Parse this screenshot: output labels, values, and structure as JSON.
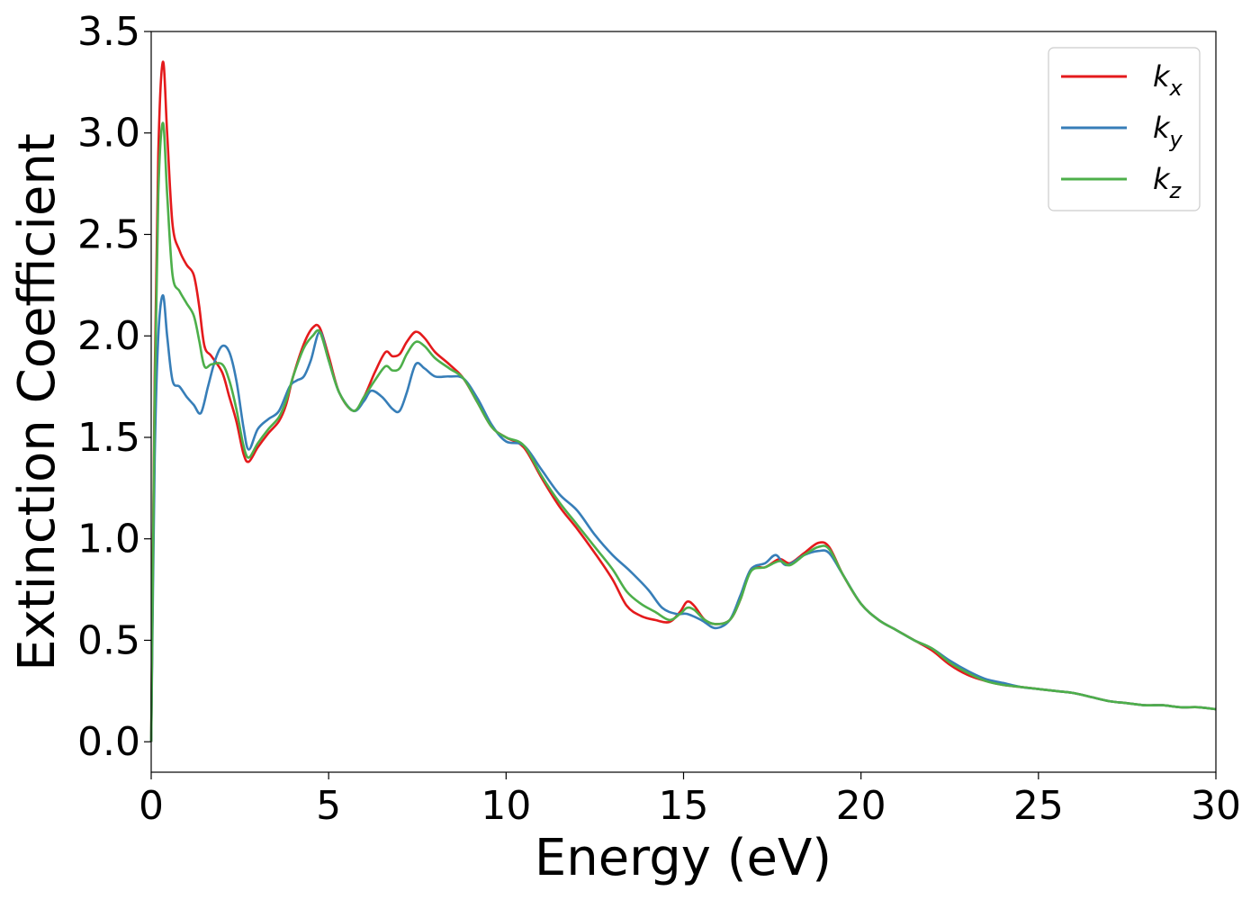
{
  "chart_data": {
    "type": "line",
    "title": "",
    "xlabel": "Energy (eV)",
    "ylabel": "Extinction Coefficient",
    "xlim": [
      0,
      30
    ],
    "ylim": [
      -0.15,
      3.5
    ],
    "xticks": [
      0,
      5,
      10,
      15,
      20,
      25,
      30
    ],
    "xtick_labels": [
      "0",
      "5",
      "10",
      "15",
      "20",
      "25",
      "30"
    ],
    "yticks": [
      0.0,
      0.5,
      1.0,
      1.5,
      2.0,
      2.5,
      3.0,
      3.5
    ],
    "ytick_labels": [
      "0.0",
      "0.5",
      "1.0",
      "1.5",
      "2.0",
      "2.5",
      "3.0",
      "3.5"
    ],
    "grid": false,
    "legend_position": "top-right",
    "series": [
      {
        "name": "k",
        "subscript": "x",
        "color": "#e41a1c",
        "points": [
          [
            0,
            0
          ],
          [
            0.1,
            1.8
          ],
          [
            0.2,
            2.9
          ],
          [
            0.33,
            3.35
          ],
          [
            0.45,
            3.0
          ],
          [
            0.6,
            2.55
          ],
          [
            0.8,
            2.42
          ],
          [
            1.0,
            2.35
          ],
          [
            1.2,
            2.3
          ],
          [
            1.35,
            2.15
          ],
          [
            1.5,
            1.95
          ],
          [
            1.7,
            1.9
          ],
          [
            2.0,
            1.82
          ],
          [
            2.2,
            1.7
          ],
          [
            2.4,
            1.58
          ],
          [
            2.6,
            1.42
          ],
          [
            2.75,
            1.38
          ],
          [
            3.0,
            1.45
          ],
          [
            3.3,
            1.52
          ],
          [
            3.6,
            1.58
          ],
          [
            3.8,
            1.66
          ],
          [
            4.0,
            1.8
          ],
          [
            4.3,
            1.96
          ],
          [
            4.55,
            2.04
          ],
          [
            4.75,
            2.04
          ],
          [
            5.0,
            1.9
          ],
          [
            5.3,
            1.72
          ],
          [
            5.7,
            1.63
          ],
          [
            6.0,
            1.7
          ],
          [
            6.3,
            1.82
          ],
          [
            6.6,
            1.92
          ],
          [
            6.8,
            1.9
          ],
          [
            7.0,
            1.91
          ],
          [
            7.2,
            1.97
          ],
          [
            7.45,
            2.02
          ],
          [
            7.7,
            1.99
          ],
          [
            8.0,
            1.92
          ],
          [
            8.4,
            1.86
          ],
          [
            8.8,
            1.79
          ],
          [
            9.2,
            1.67
          ],
          [
            9.6,
            1.55
          ],
          [
            10.0,
            1.5
          ],
          [
            10.5,
            1.45
          ],
          [
            11.0,
            1.3
          ],
          [
            11.5,
            1.16
          ],
          [
            12.0,
            1.05
          ],
          [
            12.5,
            0.93
          ],
          [
            13.0,
            0.8
          ],
          [
            13.4,
            0.67
          ],
          [
            13.8,
            0.62
          ],
          [
            14.2,
            0.6
          ],
          [
            14.6,
            0.59
          ],
          [
            14.9,
            0.64
          ],
          [
            15.1,
            0.69
          ],
          [
            15.3,
            0.67
          ],
          [
            15.6,
            0.6
          ],
          [
            15.9,
            0.58
          ],
          [
            16.3,
            0.6
          ],
          [
            16.6,
            0.7
          ],
          [
            16.9,
            0.85
          ],
          [
            17.3,
            0.86
          ],
          [
            17.7,
            0.9
          ],
          [
            18.0,
            0.88
          ],
          [
            18.4,
            0.93
          ],
          [
            18.8,
            0.98
          ],
          [
            19.1,
            0.96
          ],
          [
            19.5,
            0.82
          ],
          [
            20.0,
            0.68
          ],
          [
            20.5,
            0.6
          ],
          [
            21.0,
            0.55
          ],
          [
            21.5,
            0.5
          ],
          [
            22.0,
            0.45
          ],
          [
            22.5,
            0.38
          ],
          [
            23.0,
            0.33
          ],
          [
            23.5,
            0.3
          ],
          [
            24.0,
            0.28
          ],
          [
            24.5,
            0.27
          ],
          [
            25.0,
            0.26
          ],
          [
            25.5,
            0.25
          ],
          [
            26.0,
            0.24
          ],
          [
            26.5,
            0.22
          ],
          [
            27.0,
            0.2
          ],
          [
            27.5,
            0.19
          ],
          [
            28.0,
            0.18
          ],
          [
            28.5,
            0.18
          ],
          [
            29.0,
            0.17
          ],
          [
            29.5,
            0.17
          ],
          [
            30.0,
            0.16
          ]
        ]
      },
      {
        "name": "k",
        "subscript": "y",
        "color": "#377eb8",
        "points": [
          [
            0,
            0
          ],
          [
            0.1,
            1.4
          ],
          [
            0.2,
            2.0
          ],
          [
            0.33,
            2.2
          ],
          [
            0.45,
            2.0
          ],
          [
            0.6,
            1.78
          ],
          [
            0.8,
            1.75
          ],
          [
            1.0,
            1.7
          ],
          [
            1.2,
            1.66
          ],
          [
            1.4,
            1.62
          ],
          [
            1.6,
            1.75
          ],
          [
            1.8,
            1.88
          ],
          [
            2.0,
            1.95
          ],
          [
            2.2,
            1.92
          ],
          [
            2.4,
            1.78
          ],
          [
            2.6,
            1.55
          ],
          [
            2.75,
            1.44
          ],
          [
            3.0,
            1.54
          ],
          [
            3.3,
            1.59
          ],
          [
            3.6,
            1.63
          ],
          [
            3.9,
            1.75
          ],
          [
            4.1,
            1.78
          ],
          [
            4.3,
            1.8
          ],
          [
            4.5,
            1.88
          ],
          [
            4.75,
            2.02
          ],
          [
            5.0,
            1.88
          ],
          [
            5.3,
            1.72
          ],
          [
            5.7,
            1.63
          ],
          [
            6.0,
            1.68
          ],
          [
            6.2,
            1.73
          ],
          [
            6.5,
            1.7
          ],
          [
            6.8,
            1.64
          ],
          [
            7.0,
            1.63
          ],
          [
            7.2,
            1.72
          ],
          [
            7.45,
            1.86
          ],
          [
            7.7,
            1.84
          ],
          [
            8.0,
            1.8
          ],
          [
            8.4,
            1.8
          ],
          [
            8.8,
            1.79
          ],
          [
            9.2,
            1.69
          ],
          [
            9.6,
            1.56
          ],
          [
            10.0,
            1.48
          ],
          [
            10.5,
            1.46
          ],
          [
            11.0,
            1.34
          ],
          [
            11.5,
            1.22
          ],
          [
            12.0,
            1.14
          ],
          [
            12.5,
            1.02
          ],
          [
            13.0,
            0.92
          ],
          [
            13.5,
            0.84
          ],
          [
            14.0,
            0.75
          ],
          [
            14.4,
            0.66
          ],
          [
            14.8,
            0.63
          ],
          [
            15.1,
            0.63
          ],
          [
            15.5,
            0.6
          ],
          [
            15.9,
            0.56
          ],
          [
            16.3,
            0.6
          ],
          [
            16.6,
            0.72
          ],
          [
            16.9,
            0.85
          ],
          [
            17.3,
            0.88
          ],
          [
            17.6,
            0.92
          ],
          [
            17.9,
            0.87
          ],
          [
            18.4,
            0.92
          ],
          [
            18.8,
            0.94
          ],
          [
            19.1,
            0.93
          ],
          [
            19.5,
            0.82
          ],
          [
            20.0,
            0.68
          ],
          [
            20.5,
            0.6
          ],
          [
            21.0,
            0.55
          ],
          [
            21.5,
            0.5
          ],
          [
            22.0,
            0.46
          ],
          [
            22.5,
            0.4
          ],
          [
            23.0,
            0.35
          ],
          [
            23.5,
            0.31
          ],
          [
            24.0,
            0.29
          ],
          [
            24.5,
            0.27
          ],
          [
            25.0,
            0.26
          ],
          [
            25.5,
            0.25
          ],
          [
            26.0,
            0.24
          ],
          [
            26.5,
            0.22
          ],
          [
            27.0,
            0.2
          ],
          [
            27.5,
            0.19
          ],
          [
            28.0,
            0.18
          ],
          [
            28.5,
            0.18
          ],
          [
            29.0,
            0.17
          ],
          [
            29.5,
            0.17
          ],
          [
            30.0,
            0.16
          ]
        ]
      },
      {
        "name": "k",
        "subscript": "z",
        "color": "#4daf4a",
        "points": [
          [
            0,
            0
          ],
          [
            0.1,
            1.7
          ],
          [
            0.2,
            2.7
          ],
          [
            0.33,
            3.05
          ],
          [
            0.45,
            2.7
          ],
          [
            0.6,
            2.3
          ],
          [
            0.8,
            2.22
          ],
          [
            1.0,
            2.16
          ],
          [
            1.2,
            2.1
          ],
          [
            1.35,
            1.98
          ],
          [
            1.5,
            1.85
          ],
          [
            1.7,
            1.86
          ],
          [
            2.0,
            1.86
          ],
          [
            2.2,
            1.78
          ],
          [
            2.4,
            1.64
          ],
          [
            2.6,
            1.46
          ],
          [
            2.75,
            1.4
          ],
          [
            3.0,
            1.47
          ],
          [
            3.3,
            1.54
          ],
          [
            3.6,
            1.6
          ],
          [
            3.8,
            1.68
          ],
          [
            4.0,
            1.8
          ],
          [
            4.3,
            1.94
          ],
          [
            4.55,
            2.0
          ],
          [
            4.75,
            2.02
          ],
          [
            5.0,
            1.88
          ],
          [
            5.3,
            1.72
          ],
          [
            5.7,
            1.63
          ],
          [
            6.0,
            1.7
          ],
          [
            6.3,
            1.78
          ],
          [
            6.6,
            1.85
          ],
          [
            6.8,
            1.83
          ],
          [
            7.0,
            1.84
          ],
          [
            7.2,
            1.91
          ],
          [
            7.45,
            1.97
          ],
          [
            7.7,
            1.95
          ],
          [
            8.0,
            1.89
          ],
          [
            8.4,
            1.84
          ],
          [
            8.8,
            1.79
          ],
          [
            9.2,
            1.67
          ],
          [
            9.6,
            1.55
          ],
          [
            10.0,
            1.5
          ],
          [
            10.5,
            1.46
          ],
          [
            11.0,
            1.31
          ],
          [
            11.5,
            1.18
          ],
          [
            12.0,
            1.07
          ],
          [
            12.5,
            0.96
          ],
          [
            13.0,
            0.85
          ],
          [
            13.4,
            0.74
          ],
          [
            13.8,
            0.68
          ],
          [
            14.2,
            0.64
          ],
          [
            14.6,
            0.6
          ],
          [
            14.9,
            0.63
          ],
          [
            15.1,
            0.66
          ],
          [
            15.3,
            0.65
          ],
          [
            15.6,
            0.6
          ],
          [
            15.9,
            0.58
          ],
          [
            16.3,
            0.6
          ],
          [
            16.6,
            0.7
          ],
          [
            16.9,
            0.84
          ],
          [
            17.3,
            0.86
          ],
          [
            17.7,
            0.89
          ],
          [
            18.0,
            0.87
          ],
          [
            18.4,
            0.92
          ],
          [
            18.8,
            0.96
          ],
          [
            19.1,
            0.95
          ],
          [
            19.5,
            0.82
          ],
          [
            20.0,
            0.68
          ],
          [
            20.5,
            0.6
          ],
          [
            21.0,
            0.55
          ],
          [
            21.5,
            0.5
          ],
          [
            22.0,
            0.46
          ],
          [
            22.5,
            0.39
          ],
          [
            23.0,
            0.34
          ],
          [
            23.5,
            0.3
          ],
          [
            24.0,
            0.28
          ],
          [
            24.5,
            0.27
          ],
          [
            25.0,
            0.26
          ],
          [
            25.5,
            0.25
          ],
          [
            26.0,
            0.24
          ],
          [
            26.5,
            0.22
          ],
          [
            27.0,
            0.2
          ],
          [
            27.5,
            0.19
          ],
          [
            28.0,
            0.18
          ],
          [
            28.5,
            0.18
          ],
          [
            29.0,
            0.17
          ],
          [
            29.5,
            0.17
          ],
          [
            30.0,
            0.16
          ]
        ]
      }
    ]
  }
}
